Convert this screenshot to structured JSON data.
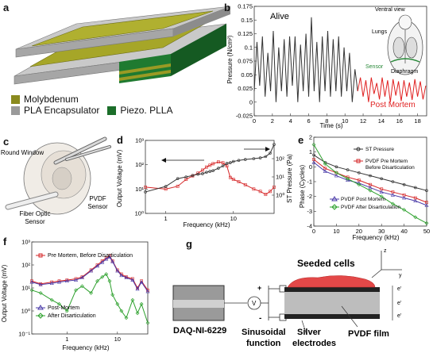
{
  "panels": {
    "a": {
      "label": "a",
      "legend": [
        {
          "text": "Molybdenum",
          "color": "#8a8a1e"
        },
        {
          "text": "PLA Encapsulator",
          "color": "#9a9a9a"
        },
        {
          "text": "Piezo. PLLA",
          "color": "#1c6e2a"
        }
      ]
    },
    "b": {
      "label": "b",
      "alive_label": "Alive",
      "post_label": "Post Mortem",
      "inset": {
        "title": "Ventral view",
        "lungs": "Lungs",
        "sensor": "Sensor",
        "diaphragm": "Diaphragm"
      },
      "ylabel": "Pressure (N/cm²)",
      "xlabel": "Time (s)",
      "xticks": [
        "0",
        "2",
        "4",
        "6",
        "8",
        "10",
        "12",
        "14",
        "16",
        "18"
      ],
      "yticks": [
        "-0.025",
        "0",
        "0.025",
        "0.05",
        "0.075",
        "0.1",
        "0.125",
        "0.15",
        "0.175"
      ]
    },
    "c": {
      "label": "c",
      "round_window": "Round Window",
      "fiber": "Fiber Optic Sensor",
      "pvdf": "PVDF Sensor"
    },
    "d": {
      "label": "d",
      "ylabel_left": "Output Voltage (mV)",
      "ylabel_right": "ST Pressure (Pa)",
      "xlabel": "Frequency (kHz)",
      "xticks": [
        "1",
        "10"
      ],
      "left_ticks": [
        "10⁰",
        "10¹",
        "10²",
        "10³"
      ],
      "right_ticks": [
        "10⁰",
        "10¹",
        "10²"
      ]
    },
    "e": {
      "label": "e",
      "ylabel": "Phase (Cycles)",
      "xlabel": "Frequency (kHz)",
      "xticks": [
        "0",
        "10",
        "20",
        "30",
        "40",
        "50"
      ],
      "yticks": [
        "-4",
        "-3",
        "-2",
        "-1",
        "0",
        "1",
        "2"
      ],
      "legend": [
        "ST Pressure",
        "PVDF Pre Mortem Before Disarticulation",
        "PVDF Post Mortem",
        "PVDF After Disarticulation"
      ]
    },
    "f": {
      "label": "f",
      "ylabel": "Output Voltage (mV)",
      "xlabel": "Frequency (kHz)",
      "xticks": [
        "1",
        "10"
      ],
      "yticks": [
        "10⁻¹",
        "10⁰",
        "10¹",
        "10²",
        "10³"
      ],
      "legend_top": "Pre Mortem, Before Disarticulation",
      "legend_a": "Post-Mortem",
      "legend_b": "After Disarticulation"
    },
    "g": {
      "label": "g",
      "seeded": "Seeded cells",
      "daq": "DAQ-NI-6229",
      "sin1": "Sinusoidal",
      "sin2": "function",
      "silver1": "Silver",
      "silver2": "electrodes",
      "pvdf_film": "PVDF film",
      "v": "V",
      "plus": "+",
      "minus": "-",
      "z": "z",
      "y": "y",
      "e": "e'"
    }
  },
  "chart_data": [
    {
      "type": "line",
      "panel": "b",
      "xlabel": "Time (s)",
      "ylabel": "Pressure (N/cm²)",
      "xlim": [
        0,
        19
      ],
      "ylim": [
        -0.025,
        0.175
      ],
      "series": [
        {
          "name": "Alive",
          "color": "#333333",
          "x": [
            0,
            0.3,
            0.6,
            0.9,
            1.2,
            1.5,
            1.8,
            2.1,
            2.4,
            2.7,
            3.0,
            3.3,
            3.6,
            3.9,
            4.2,
            4.5,
            4.8,
            5.1,
            5.4,
            5.7,
            6.0,
            6.3,
            6.6,
            6.9,
            7.2,
            7.5,
            7.8,
            8.1,
            8.4,
            8.7,
            9.0,
            9.3,
            9.6,
            9.9,
            10.2,
            10.5,
            10.8,
            11.1,
            11.4
          ],
          "y": [
            0.02,
            0.11,
            0.03,
            0.12,
            0.01,
            0.09,
            0.02,
            0.13,
            0.0,
            0.1,
            0.02,
            0.115,
            0.01,
            0.12,
            0.03,
            0.12,
            0.0,
            0.105,
            0.02,
            0.125,
            0.01,
            0.155,
            0.02,
            0.11,
            0.0,
            0.12,
            0.02,
            0.13,
            0.01,
            0.115,
            0.02,
            0.12,
            0.01,
            0.1,
            0.02,
            0.09,
            0.0,
            0.06,
            0.02
          ]
        },
        {
          "name": "Post Mortem",
          "color": "#e02020",
          "x": [
            11.4,
            11.7,
            12.0,
            12.3,
            12.6,
            12.9,
            13.2,
            13.5,
            13.8,
            14.1,
            14.4,
            14.7,
            15.0,
            15.3,
            15.6,
            15.9,
            16.2,
            16.5,
            16.8,
            17.1,
            17.4,
            17.7,
            18.0,
            18.3,
            18.6,
            18.9
          ],
          "y": [
            0.02,
            0.045,
            0.01,
            0.04,
            0.0,
            0.045,
            0.015,
            0.035,
            0.005,
            0.045,
            0.01,
            0.04,
            0.0,
            0.042,
            0.012,
            0.038,
            0.002,
            0.04,
            0.01,
            0.036,
            0.004,
            0.042,
            0.01,
            0.038,
            0.005,
            0.03
          ]
        }
      ]
    },
    {
      "type": "line",
      "panel": "d",
      "xlabel": "Frequency (kHz)",
      "ylabel": "Output Voltage (mV)",
      "x_scale": "log",
      "xlim": [
        0.5,
        40
      ],
      "y_scale": "log",
      "ylim": [
        1,
        1000
      ],
      "series": [
        {
          "name": "Output Voltage",
          "color": "#d62728",
          "x": [
            0.5,
            1,
            1.5,
            2,
            2.5,
            3,
            3.5,
            4,
            4.5,
            5,
            6,
            7,
            8,
            9,
            10,
            12,
            15,
            20,
            25,
            30,
            35,
            40
          ],
          "y": [
            12,
            10,
            13,
            25,
            35,
            45,
            60,
            80,
            95,
            110,
            130,
            120,
            90,
            30,
            25,
            20,
            15,
            10,
            8,
            6,
            8,
            12
          ]
        },
        {
          "name": "ST Pressure",
          "color": "#333333",
          "x": [
            0.5,
            1,
            1.5,
            2,
            2.5,
            3,
            3.5,
            4,
            4.5,
            5,
            6,
            7,
            8,
            9,
            10,
            12,
            15,
            20,
            25,
            30,
            35,
            40
          ],
          "y": [
            1.5,
            3,
            8,
            10,
            12,
            14,
            15,
            18,
            20,
            22,
            30,
            40,
            55,
            60,
            70,
            80,
            90,
            100,
            110,
            130,
            200,
            600
          ]
        }
      ]
    },
    {
      "type": "line",
      "panel": "e",
      "xlabel": "Frequency (kHz)",
      "ylabel": "Phase (Cycles)",
      "xlim": [
        0,
        50
      ],
      "ylim": [
        -4,
        2
      ],
      "series": [
        {
          "name": "ST Pressure",
          "color": "#333333",
          "x": [
            0,
            5,
            10,
            15,
            20,
            25,
            30,
            35,
            40,
            45,
            50
          ],
          "y": [
            0.8,
            0.3,
            0.0,
            -0.2,
            -0.4,
            -0.6,
            -0.8,
            -1.0,
            -1.2,
            -1.4,
            -1.6
          ]
        },
        {
          "name": "PVDF Pre Mortem Before Disarticulation",
          "color": "#d62728",
          "x": [
            0,
            5,
            10,
            15,
            20,
            25,
            30,
            35,
            40,
            45,
            50
          ],
          "y": [
            0.5,
            -0.1,
            -0.4,
            -0.7,
            -0.9,
            -1.2,
            -1.5,
            -1.7,
            -1.9,
            -2.1,
            -2.4
          ]
        },
        {
          "name": "PVDF Post Mortem",
          "color": "#4a3aa8",
          "x": [
            0,
            5,
            10,
            15,
            20,
            25,
            30,
            35,
            40,
            45,
            50
          ],
          "y": [
            0.3,
            -0.3,
            -0.6,
            -0.9,
            -1.1,
            -1.4,
            -1.7,
            -1.9,
            -2.1,
            -2.3,
            -2.6
          ]
        },
        {
          "name": "PVDF After Disarticulation",
          "color": "#2ca02c",
          "x": [
            0,
            5,
            10,
            15,
            20,
            25,
            30,
            35,
            40,
            45,
            50
          ],
          "y": [
            1.5,
            0.2,
            -0.4,
            -0.8,
            -1.2,
            -1.6,
            -2.0,
            -2.5,
            -2.9,
            -3.4,
            -3.8
          ]
        }
      ]
    },
    {
      "type": "line",
      "panel": "f",
      "xlabel": "Frequency (kHz)",
      "ylabel": "Output Voltage (mV)",
      "x_scale": "log",
      "xlim": [
        0.2,
        40
      ],
      "y_scale": "log",
      "ylim": [
        0.1,
        1000
      ],
      "series": [
        {
          "name": "Pre Mortem, Before Disarticulation",
          "color": "#d62728",
          "x": [
            0.2,
            0.3,
            0.5,
            0.7,
            1,
            1.5,
            2,
            3,
            4,
            5,
            6,
            7,
            8,
            10,
            12,
            15,
            20,
            25,
            30,
            40
          ],
          "y": [
            20,
            15,
            18,
            20,
            22,
            25,
            30,
            60,
            100,
            150,
            200,
            250,
            150,
            60,
            40,
            30,
            25,
            10,
            20,
            8
          ]
        },
        {
          "name": "Post-Mortem",
          "color": "#4a3aa8",
          "x": [
            0.2,
            0.3,
            0.5,
            0.7,
            1,
            1.5,
            2,
            3,
            4,
            5,
            6,
            7,
            8,
            10,
            12,
            15,
            20,
            25,
            30,
            40
          ],
          "y": [
            18,
            14,
            16,
            18,
            20,
            22,
            28,
            55,
            90,
            130,
            180,
            220,
            140,
            55,
            35,
            28,
            22,
            9,
            18,
            7
          ]
        },
        {
          "name": "After Disarticulation",
          "color": "#2ca02c",
          "x": [
            0.2,
            0.3,
            0.5,
            0.7,
            1,
            1.5,
            2,
            3,
            4,
            5,
            6,
            7,
            8,
            10,
            12,
            15,
            20,
            25,
            30,
            40
          ],
          "y": [
            8,
            6,
            3,
            2,
            1,
            8,
            12,
            6,
            20,
            30,
            40,
            20,
            5,
            2,
            1,
            0.5,
            3,
            0.8,
            2,
            0.3
          ]
        }
      ]
    }
  ]
}
